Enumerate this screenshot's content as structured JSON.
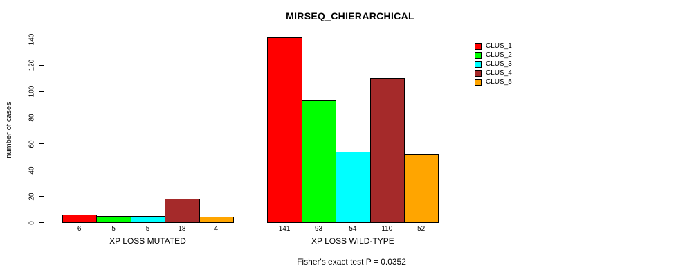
{
  "chart_data": {
    "type": "bar",
    "title": "MIRSEQ_CHIERARCHICAL",
    "ylabel": "number of cases",
    "xlabel": "",
    "caption": "Fisher's exact test P = 0.0352",
    "ylim": [
      0,
      140
    ],
    "yticks": [
      0,
      20,
      40,
      60,
      80,
      100,
      120,
      140
    ],
    "grid": false,
    "bar_value_labels": true,
    "categories": [
      "XP LOSS MUTATED",
      "XP LOSS WILD-TYPE"
    ],
    "series": [
      {
        "name": "CLUS_1",
        "color": "#FF0000",
        "values": [
          6,
          141
        ]
      },
      {
        "name": "CLUS_2",
        "color": "#00FF00",
        "values": [
          5,
          93
        ]
      },
      {
        "name": "CLUS_3",
        "color": "#00FFFF",
        "values": [
          5,
          54
        ]
      },
      {
        "name": "CLUS_4",
        "color": "#A52A2A",
        "values": [
          18,
          110
        ]
      },
      {
        "name": "CLUS_5",
        "color": "#FFA500",
        "values": [
          4,
          52
        ]
      }
    ],
    "legend": {
      "position": "right",
      "entries": [
        "CLUS_1",
        "CLUS_2",
        "CLUS_3",
        "CLUS_4",
        "CLUS_5"
      ]
    }
  }
}
